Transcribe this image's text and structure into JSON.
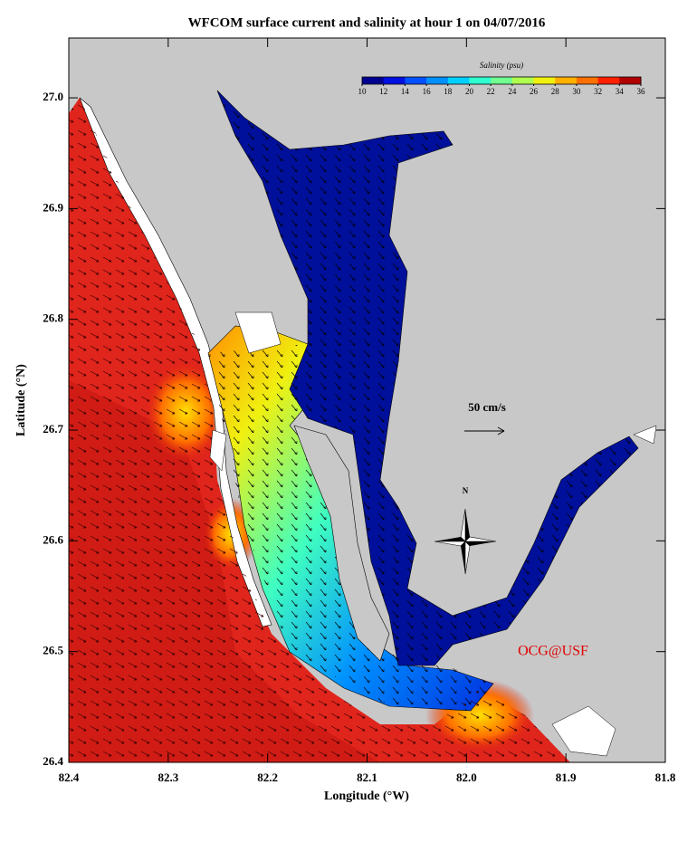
{
  "chart_data": {
    "type": "map",
    "title": "WFCOM surface current and salinity at hour 1 on 04/07/2016",
    "xlabel": "Longitude (°W)",
    "ylabel": "Latitude (°N)",
    "xlim": [
      82.4,
      81.8
    ],
    "ylim": [
      26.4,
      27.054
    ],
    "xticks": [
      82.4,
      82.3,
      82.2,
      82.1,
      {
        "value": 82.0,
        "label": "82.0"
      },
      81.9,
      81.8
    ],
    "yticks": [
      26.4,
      26.5,
      26.6,
      26.7,
      26.8,
      26.9,
      {
        "value": 27.0,
        "label": "27.0"
      }
    ],
    "colorbar": {
      "label": "Salinity (psu)",
      "lim": [
        10,
        36
      ],
      "ticks": [
        10,
        12,
        14,
        16,
        18,
        20,
        22,
        24,
        26,
        28,
        30,
        32,
        34,
        36
      ],
      "colors": [
        "#000090",
        "#0010e0",
        "#0050ff",
        "#0090ff",
        "#00d0ff",
        "#30ffd0",
        "#70ff90",
        "#b0ff50",
        "#f0f010",
        "#ffb000",
        "#ff7000",
        "#ff2000",
        "#b00000"
      ]
    },
    "scale_label": "50 cm/s",
    "compass_label": "N",
    "credit": "OCG@USF"
  }
}
